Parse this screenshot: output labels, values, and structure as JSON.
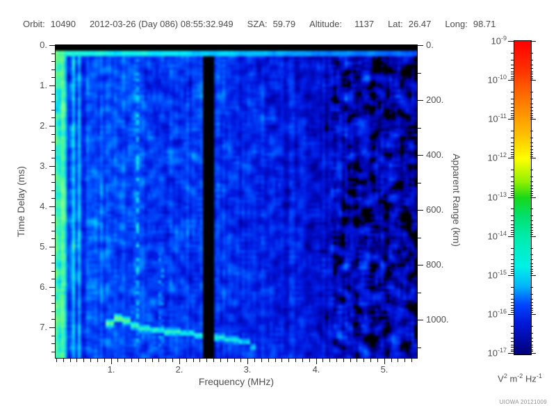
{
  "header": {
    "orbit_label": "Orbit:",
    "orbit": "10490",
    "datetime": "2012-03-26 (Day 086) 08:55:32.949",
    "sza_label": "SZA:",
    "sza": "59.79",
    "altitude_label": "Altitude:",
    "altitude": "1137",
    "lat_label": "Lat:",
    "lat": "26.47",
    "long_label": "Long:",
    "long": "98.71"
  },
  "watermark": "UIOWA 20121009",
  "chart_data": {
    "type": "heatmap",
    "description": "Radar sounder ionogram: received spectral density vs frequency and time delay; rainbow log color scale",
    "grid": false,
    "legend_position": "right-colorbar",
    "x_axis": {
      "label": "Frequency (MHz)",
      "range": [
        0.19,
        5.48
      ],
      "major_ticks": [
        {
          "v": 1,
          "t": "1."
        },
        {
          "v": 2,
          "t": "2."
        },
        {
          "v": 3,
          "t": "3."
        },
        {
          "v": 4,
          "t": "4."
        },
        {
          "v": 5,
          "t": "5."
        }
      ],
      "minor_step": 0.1
    },
    "y_axis_left": {
      "label": "Time Delay (ms)",
      "range": [
        0,
        7.76
      ],
      "major_ticks": [
        {
          "v": 0,
          "t": "0."
        },
        {
          "v": 1,
          "t": "1."
        },
        {
          "v": 2,
          "t": "2."
        },
        {
          "v": 3,
          "t": "3."
        },
        {
          "v": 4,
          "t": "4."
        },
        {
          "v": 5,
          "t": "5."
        },
        {
          "v": 6,
          "t": "6."
        },
        {
          "v": 7,
          "t": "7."
        }
      ],
      "minor_step": 0.2
    },
    "y_axis_right": {
      "label": "Apparent Range (km)",
      "range": [
        0,
        1139
      ],
      "major_ticks": [
        {
          "v": 0,
          "t": "0."
        },
        {
          "v": 200,
          "t": "200."
        },
        {
          "v": 400,
          "t": "400."
        },
        {
          "v": 600,
          "t": "600."
        },
        {
          "v": 800,
          "t": "800."
        },
        {
          "v": 1000,
          "t": "1000."
        }
      ],
      "minor_step": 100
    },
    "colorbar": {
      "scale_base": "10",
      "exponent_ticks": [
        "-9",
        "-10",
        "-11",
        "-12",
        "-13",
        "-14",
        "-15",
        "-16",
        "-17"
      ],
      "minor_log_ticks": [
        2,
        3,
        4,
        5,
        6,
        7,
        8,
        9
      ],
      "unit_parts": [
        [
          "V",
          "2"
        ],
        [
          "m",
          "-2"
        ],
        [
          "Hz",
          "-1"
        ]
      ],
      "gradient": [
        [
          0.0,
          "#FF0000"
        ],
        [
          0.09,
          "#FF3000"
        ],
        [
          0.19,
          "#FF7800"
        ],
        [
          0.3,
          "#FFC000"
        ],
        [
          0.375,
          "#FFFF00"
        ],
        [
          0.45,
          "#90F000"
        ],
        [
          0.5,
          "#18D818"
        ],
        [
          0.56,
          "#00E070"
        ],
        [
          0.625,
          "#00ECAC"
        ],
        [
          0.72,
          "#00F0E8"
        ],
        [
          0.78,
          "#00B8F8"
        ],
        [
          0.84,
          "#0048FF"
        ],
        [
          0.9,
          "#0018D8"
        ],
        [
          1.0,
          "#000078"
        ]
      ]
    },
    "noise_colormap": [
      [
        0.0,
        "#000000"
      ],
      [
        0.12,
        "#00003C"
      ],
      [
        0.2,
        "#0000A0"
      ],
      [
        0.34,
        "#0018E0"
      ],
      [
        0.48,
        "#0050FF"
      ],
      [
        0.6,
        "#00A0FF"
      ],
      [
        0.7,
        "#00DCF8"
      ],
      [
        0.8,
        "#30F4C0"
      ],
      [
        0.9,
        "#68F878"
      ],
      [
        1.0,
        "#90FF88"
      ]
    ],
    "seed": 7,
    "features": {
      "top_blank_band_ms": 0.16,
      "surface_line": {
        "t_max": 0.3,
        "strength": 0.8,
        "freq_fade": 0.055
      },
      "base_profile": [
        [
          0.19,
          0.82
        ],
        [
          0.3,
          0.74
        ],
        [
          0.36,
          0.56
        ],
        [
          0.5,
          0.5
        ],
        [
          1.0,
          0.47
        ],
        [
          2.0,
          0.43
        ],
        [
          2.6,
          0.41
        ],
        [
          3.3,
          0.37
        ],
        [
          4.2,
          0.3
        ],
        [
          4.7,
          0.24
        ],
        [
          5.48,
          0.22
        ]
      ],
      "noise_amp": 0.22,
      "left_streak_max_mhz": 0.65,
      "right_contrast_mhz": 4.2,
      "plasma_lines": [
        {
          "f": 1.4,
          "halfwidth": 0.03,
          "strength": 0.58,
          "t_min": 0
        },
        {
          "f": 1.73,
          "halfwidth": 0.03,
          "strength": 0.48,
          "t_min": 5.0
        }
      ],
      "dark_band": {
        "f_min": 2.36,
        "f_max": 2.52,
        "atten": 0.1
      },
      "echo_trace": {
        "halfwidth_ms": 0.09,
        "segments": [
          {
            "f0": 0.93,
            "f1": 1.03,
            "t": 6.9,
            "i": 0.92
          },
          {
            "f0": 1.03,
            "f1": 1.16,
            "t": 6.78,
            "i": 0.95
          },
          {
            "f0": 1.16,
            "f1": 1.3,
            "t": 6.84,
            "i": 0.92
          },
          {
            "f0": 1.3,
            "f1": 1.4,
            "t": 6.95,
            "i": 0.88
          },
          {
            "f0": 1.4,
            "f1": 1.57,
            "t": 7.03,
            "i": 0.8
          },
          {
            "f0": 1.57,
            "f1": 1.78,
            "t": 7.07,
            "i": 0.82
          },
          {
            "f0": 1.78,
            "f1": 2.02,
            "t": 7.12,
            "i": 0.84
          },
          {
            "f0": 2.02,
            "f1": 2.22,
            "t": 7.15,
            "i": 0.78
          },
          {
            "f0": 2.22,
            "f1": 2.44,
            "t": 7.21,
            "i": 0.8
          },
          {
            "f0": 2.44,
            "f1": 2.66,
            "t": 7.26,
            "i": 0.78
          },
          {
            "f0": 2.66,
            "f1": 2.88,
            "t": 7.31,
            "i": 0.76
          },
          {
            "f0": 2.88,
            "f1": 3.02,
            "t": 7.36,
            "i": 0.74
          },
          {
            "f0": 3.02,
            "f1": 3.1,
            "t": 7.5,
            "i": 0.7
          }
        ]
      }
    }
  }
}
